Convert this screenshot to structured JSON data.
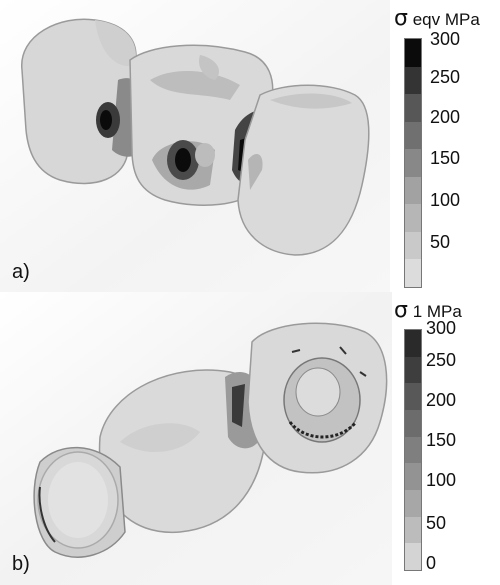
{
  "panel_a": {
    "label": "a)",
    "colorbar": {
      "symbol": "σ",
      "title": "eqv MPa",
      "ticks": [
        "300",
        "250",
        "200",
        "150",
        "100",
        "50"
      ],
      "shades": [
        "#0b0b0b",
        "#343434",
        "#575757",
        "#707070",
        "#888888",
        "#a2a2a2",
        "#b6b6b6",
        "#c9c9c9",
        "#dcdcdc"
      ]
    }
  },
  "panel_b": {
    "label": "b)",
    "colorbar": {
      "symbol": "σ",
      "title": "1 MPa",
      "ticks": [
        "300",
        "250",
        "200",
        "150",
        "100",
        "50",
        "0"
      ],
      "shades": [
        "#2a2a2a",
        "#3e3e3e",
        "#585858",
        "#6c6c6c",
        "#7f7f7f",
        "#939393",
        "#a7a7a7",
        "#bcbcbc",
        "#d4d4d4"
      ]
    }
  }
}
